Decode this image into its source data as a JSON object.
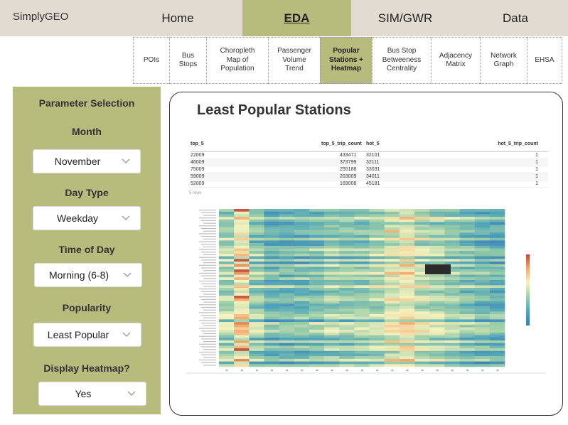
{
  "brand": "SimplyGEO",
  "nav": [
    {
      "label": "Home",
      "active": false
    },
    {
      "label": "EDA",
      "active": true
    },
    {
      "label": "SIM/GWR",
      "active": false
    },
    {
      "label": "Data",
      "active": false
    }
  ],
  "subtabs": [
    {
      "lines": [
        "POIs"
      ],
      "active": false
    },
    {
      "lines": [
        "Bus",
        "Stops"
      ],
      "active": false
    },
    {
      "lines": [
        "Choropleth",
        "Map of",
        "Population"
      ],
      "active": false
    },
    {
      "lines": [
        "Passenger",
        "Volume",
        "Trend"
      ],
      "active": false
    },
    {
      "lines": [
        "Popular",
        "Stations +",
        "Heatmap"
      ],
      "active": true
    },
    {
      "lines": [
        "Bus Stop",
        "Betweeness",
        "Centrality"
      ],
      "active": false
    },
    {
      "lines": [
        "Adjacency",
        "Matrix"
      ],
      "active": false
    },
    {
      "lines": [
        "Network",
        "Graph"
      ],
      "active": false
    },
    {
      "lines": [
        "EHSA"
      ],
      "active": false
    }
  ],
  "sidebar": {
    "title": "Parameter Selection",
    "month_label": "Month",
    "month_value": "November",
    "daytype_label": "Day Type",
    "daytype_value": "Weekday",
    "time_label": "Time of Day",
    "time_value": "Morning (6-8)",
    "popularity_label": "Popularity",
    "popularity_value": "Least Popular",
    "heatmap_label": "Display Heatmap?",
    "heatmap_value": "Yes"
  },
  "main": {
    "title": "Least Popular Stations",
    "table": {
      "columns": [
        "top_5",
        "top_5_trip_count",
        "hot_5",
        "hot_5_trip_count"
      ],
      "rows": [
        [
          "22009",
          "433471",
          "32101",
          "1"
        ],
        [
          "46009",
          "373799",
          "32111",
          "1"
        ],
        [
          "75009",
          "255188",
          "33031",
          "1"
        ],
        [
          "59009",
          "203009",
          "34011",
          "1"
        ],
        [
          "52009",
          "169008",
          "45181",
          "1"
        ]
      ],
      "rows_note": "5 rows"
    }
  },
  "colors": {
    "nav_bg": "#e2dbd2",
    "accent": "#b7bb7c",
    "heat_low": "#3b7bb8",
    "heat_mid": "#f5f3bf",
    "heat_high": "#c0463b"
  }
}
